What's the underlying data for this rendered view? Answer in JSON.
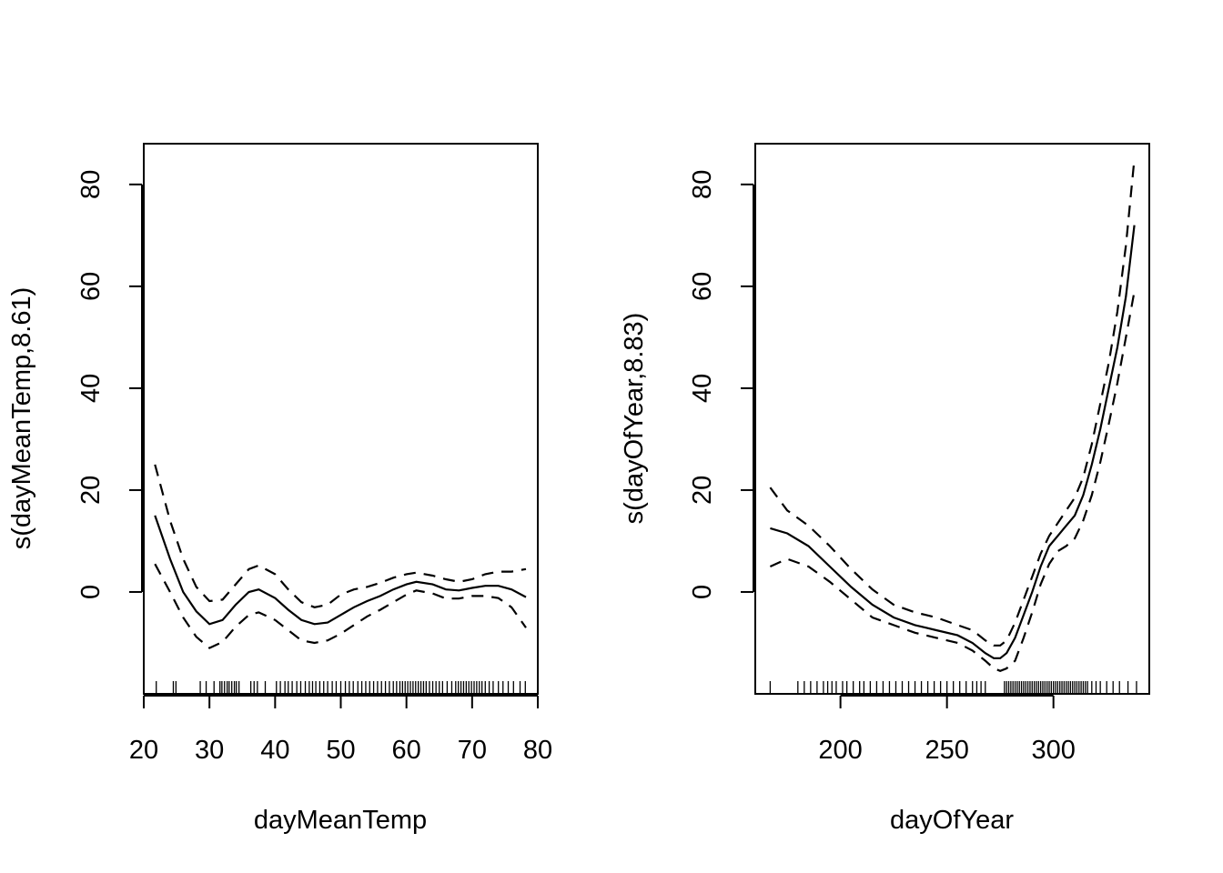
{
  "chart_data": [
    {
      "type": "line",
      "xlabel": "dayMeanTemp",
      "ylabel": "s(dayMeanTemp,8.61)",
      "xlim": [
        20,
        80
      ],
      "ylim": [
        -20,
        88
      ],
      "xticks": [
        20,
        30,
        40,
        50,
        60,
        70,
        80
      ],
      "yticks": [
        0,
        20,
        40,
        60,
        80
      ],
      "xtick_labels": [
        "20",
        "30",
        "40",
        "50",
        "60",
        "70",
        "80"
      ],
      "ytick_labels": [
        "0",
        "20",
        "40",
        "60",
        "80"
      ],
      "grid": false,
      "x": [
        21.7,
        24,
        26,
        28,
        30,
        32,
        34,
        36,
        37.5,
        40,
        42,
        44,
        46,
        48,
        50,
        52,
        54,
        56,
        58,
        60,
        61.5,
        64,
        66,
        68,
        70,
        72,
        74,
        76,
        78.2
      ],
      "series": [
        {
          "role": "fit",
          "style": "solid",
          "values": [
            15,
            6.5,
            0,
            -3.8,
            -6.3,
            -5.5,
            -2.5,
            0,
            0.5,
            -1.2,
            -3.5,
            -5.5,
            -6.3,
            -6,
            -4.5,
            -3,
            -1.8,
            -0.8,
            0.5,
            1.5,
            2,
            1.5,
            0.5,
            0.3,
            0.8,
            1.2,
            1.2,
            0.5,
            -1
          ]
        },
        {
          "role": "upper",
          "style": "dashed",
          "values": [
            25,
            14,
            6.5,
            1,
            -1.8,
            -1.5,
            1.5,
            4.5,
            5.2,
            3.5,
            0.5,
            -2,
            -3,
            -2.5,
            -0.5,
            0.5,
            1,
            1.8,
            2.8,
            3.5,
            3.8,
            3.2,
            2.5,
            2,
            2.5,
            3.5,
            4,
            4,
            4.5
          ]
        },
        {
          "role": "lower",
          "style": "dashed",
          "values": [
            5.5,
            0,
            -5,
            -8.8,
            -11,
            -9.8,
            -6.8,
            -4.5,
            -4,
            -5.5,
            -7.5,
            -9.5,
            -10,
            -9.5,
            -8.2,
            -6.5,
            -4.8,
            -3.5,
            -2,
            -0.5,
            0.3,
            -0.3,
            -1.3,
            -1.3,
            -0.8,
            -0.8,
            -1.2,
            -3,
            -7
          ]
        }
      ],
      "rug": [
        21.9,
        24.5,
        24.9,
        28.6,
        29.5,
        30.7,
        31.6,
        31.9,
        32.3,
        32.7,
        33,
        33.4,
        33.8,
        34.1,
        34.5,
        36.3,
        36.8,
        37.3,
        38.5,
        40.2,
        40.8,
        41.5,
        42,
        42.6,
        43.3,
        43.9,
        44.6,
        45.2,
        45.7,
        46.2,
        46.8,
        47.4,
        48,
        48.7,
        49.3,
        50,
        50.7,
        51.3,
        51.9,
        52.6,
        53.2,
        53.8,
        54.4,
        55,
        55.6,
        56.2,
        56.8,
        57.4,
        58,
        58.5,
        59,
        59.4,
        59.8,
        60.2,
        60.6,
        61,
        61.4,
        61.8,
        62.2,
        62.6,
        63,
        63.5,
        64,
        64.5,
        65,
        65.5,
        66.2,
        66.9,
        67.5,
        67.9,
        68.3,
        68.7,
        69.1,
        69.5,
        69.9,
        70.3,
        70.7,
        71.1,
        71.5,
        72,
        72.6,
        73.2,
        74,
        74.7,
        75.5,
        76.3,
        77.3,
        78.1
      ]
    },
    {
      "type": "line",
      "xlabel": "dayOfYear",
      "ylabel": "s(dayOfYear,8.83)",
      "xlim": [
        160,
        345
      ],
      "ylim": [
        -20,
        88
      ],
      "xticks": [
        200,
        250,
        300
      ],
      "yticks": [
        0,
        20,
        40,
        60,
        80
      ],
      "xtick_labels": [
        "200",
        "250",
        "300"
      ],
      "ytick_labels": [
        "0",
        "20",
        "40",
        "60",
        "80"
      ],
      "grid": false,
      "x": [
        167,
        175,
        185,
        195,
        205,
        215,
        225,
        235,
        245,
        255,
        262,
        268,
        272,
        275,
        278,
        282,
        286,
        290,
        294,
        298,
        302,
        306,
        310,
        314,
        318,
        322,
        326,
        330,
        334,
        338
      ],
      "series": [
        {
          "role": "fit",
          "style": "solid",
          "values": [
            12.5,
            11.5,
            9,
            5,
            1,
            -2.5,
            -5,
            -6.5,
            -7.5,
            -8.5,
            -10,
            -12,
            -13,
            -13,
            -12,
            -9,
            -4.5,
            0,
            5,
            9,
            11,
            13,
            15,
            19,
            25,
            32,
            40,
            48,
            58,
            72
          ]
        },
        {
          "role": "upper",
          "style": "dashed",
          "values": [
            20.5,
            16,
            13,
            9,
            4.5,
            0.5,
            -2.5,
            -4,
            -5,
            -6.5,
            -7.5,
            -9.5,
            -10.5,
            -10.5,
            -9.5,
            -6,
            -1.5,
            3,
            7.5,
            11,
            13.5,
            16,
            18.5,
            22.5,
            29,
            37,
            45,
            55,
            68,
            85
          ]
        },
        {
          "role": "lower",
          "style": "dashed",
          "values": [
            5,
            6.5,
            5,
            2,
            -1.5,
            -5,
            -6.5,
            -8,
            -9,
            -10,
            -11.5,
            -13.5,
            -15,
            -15.5,
            -15,
            -13.5,
            -9,
            -4,
            1.5,
            5.5,
            8,
            9,
            10.5,
            14,
            19,
            25.5,
            33,
            41,
            50,
            59
          ]
        }
      ],
      "rug": [
        167,
        180,
        183,
        186,
        189,
        192,
        194,
        196,
        198,
        201,
        203,
        206,
        209,
        211,
        214,
        217,
        220,
        223,
        226,
        229,
        232,
        235,
        238,
        241,
        244,
        247,
        250,
        253,
        256,
        259,
        262,
        264,
        266,
        268,
        277,
        278,
        279,
        280,
        281,
        282,
        283,
        284,
        285,
        286,
        287,
        288,
        289,
        290,
        291,
        292,
        293,
        294,
        295,
        296,
        297,
        298,
        299,
        300,
        301,
        302,
        303,
        304,
        305,
        306,
        307,
        308,
        309,
        310,
        311,
        312,
        313,
        314,
        315,
        316,
        318,
        320,
        322,
        325,
        328,
        331,
        335,
        339
      ]
    }
  ]
}
